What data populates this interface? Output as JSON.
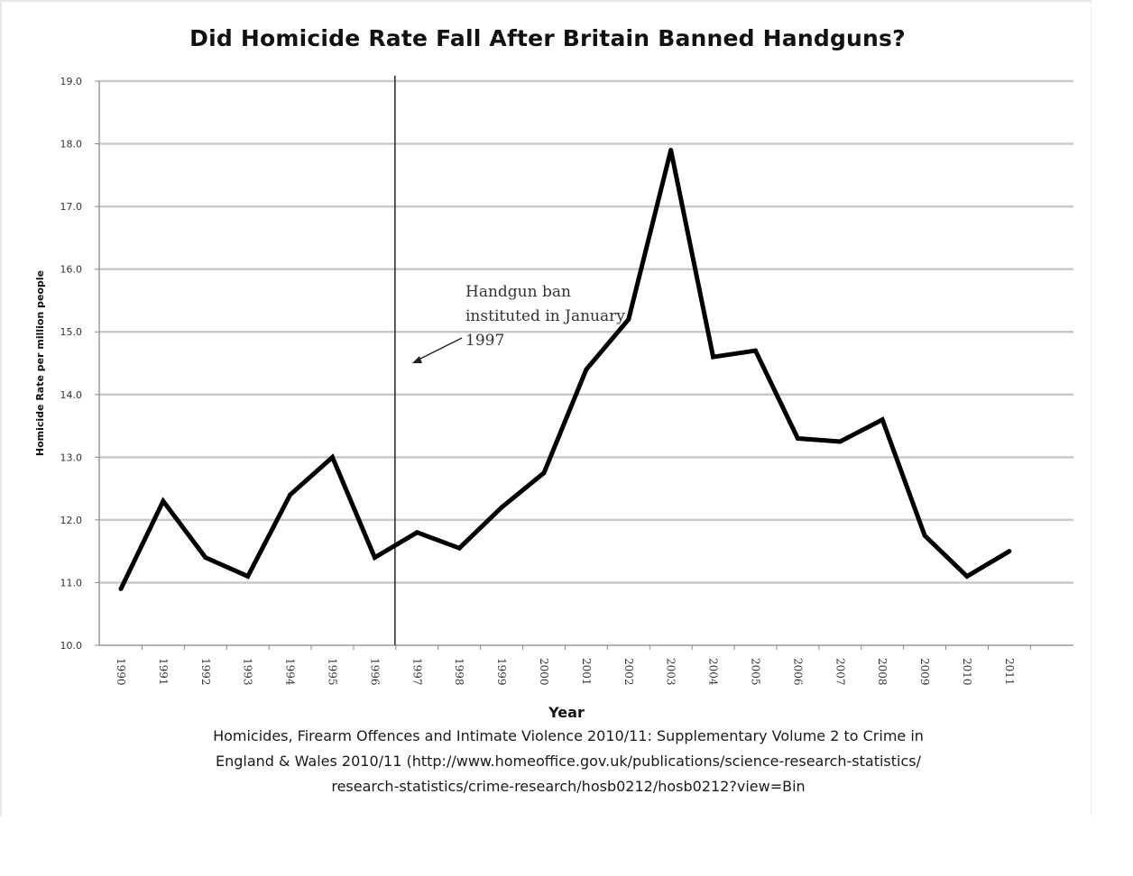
{
  "chart_data": {
    "type": "line",
    "title": "Did Homicide Rate Fall After Britain Banned Handguns?",
    "xlabel": "Year",
    "ylabel": "Homicide Rate per million people",
    "ylim": [
      10.0,
      19.0
    ],
    "yticks": [
      "10.0",
      "11.0",
      "12.0",
      "13.0",
      "14.0",
      "15.0",
      "16.0",
      "17.0",
      "18.0",
      "19.0"
    ],
    "grid": true,
    "categories": [
      "1990",
      "1991",
      "1992",
      "1993",
      "1994",
      "1995",
      "1996",
      "1997",
      "1998",
      "1999",
      "2000",
      "2001",
      "2002",
      "2003",
      "2004",
      "2005",
      "2006",
      "2007",
      "2008",
      "2009",
      "2010",
      "2011"
    ],
    "series": [
      {
        "values": [
          10.9,
          12.3,
          11.4,
          11.1,
          12.4,
          13.0,
          11.4,
          11.8,
          11.55,
          12.2,
          12.75,
          14.4,
          15.2,
          17.9,
          14.6,
          14.7,
          13.3,
          13.25,
          13.6,
          11.75,
          11.1,
          11.5
        ],
        "color": "#000000"
      }
    ],
    "annotation": {
      "lines": [
        "Handgun ban",
        "instituted in January",
        "1997"
      ],
      "marker_year": "1997",
      "marker_position": "start of 1997"
    },
    "source_lines": [
      "Homicides, Firearm Offences and Intimate Violence 2010/11: Supplementary Volume 2 to Crime in",
      "England & Wales 2010/11 (http://www.homeoffice.gov.uk/publications/science-research-statistics/",
      "research-statistics/crime-research/hosb0212/hosb0212?view=Bin"
    ]
  }
}
